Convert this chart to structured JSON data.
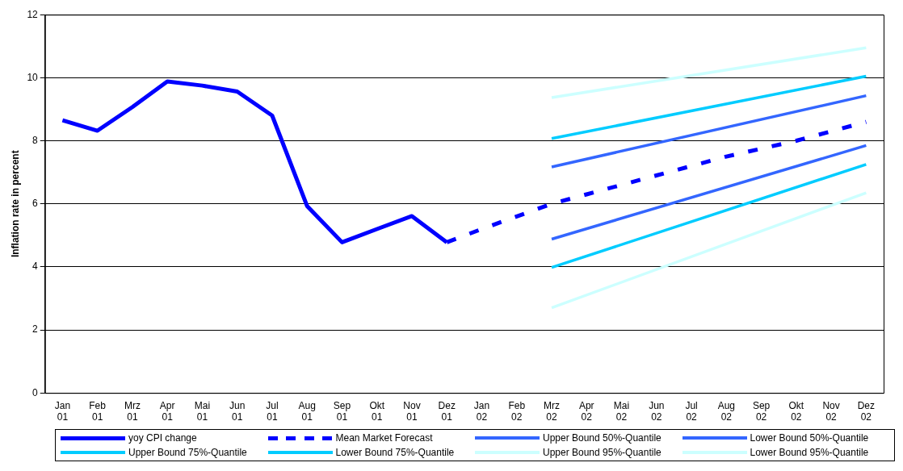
{
  "chart_data": {
    "type": "line",
    "ylabel": "Inflation rate in percent",
    "categories": [
      "Jan 01",
      "Feb 01",
      "Mrz 01",
      "Apr 01",
      "Mai 01",
      "Jun 01",
      "Jul 01",
      "Aug 01",
      "Sep 01",
      "Okt 01",
      "Nov 01",
      "Dez 01",
      "Jan 02",
      "Feb 02",
      "Mrz 02",
      "Apr 02",
      "Mai 02",
      "Jun 02",
      "Jul 02",
      "Aug 02",
      "Sep 02",
      "Okt 02",
      "Nov 02",
      "Dez 02"
    ],
    "series": [
      {
        "name": "yoy CPI change",
        "color": "#0000ff",
        "line_style": "solid",
        "values": [
          8.65,
          8.32,
          9.07,
          9.88,
          9.75,
          9.56,
          8.8,
          5.93,
          4.78,
          5.2,
          5.61,
          4.78,
          null,
          null,
          null,
          null,
          null,
          null,
          null,
          null,
          null,
          null,
          null,
          null
        ]
      },
      {
        "name": "Mean Market Forecast",
        "color": "#0000ff",
        "line_style": "dashed",
        "values": [
          null,
          null,
          null,
          null,
          null,
          null,
          null,
          null,
          null,
          null,
          null,
          4.78,
          5.2,
          5.6,
          6.0,
          6.3,
          6.6,
          6.9,
          7.2,
          7.5,
          7.75,
          8.0,
          8.3,
          8.6
        ]
      },
      {
        "name": "Upper Bound 50%-Quantile",
        "color": "#3366ff",
        "line_style": "solid",
        "values": [
          null,
          null,
          null,
          null,
          null,
          null,
          null,
          null,
          null,
          null,
          null,
          null,
          null,
          null,
          7.17,
          null,
          null,
          null,
          null,
          null,
          null,
          null,
          null,
          9.43
        ]
      },
      {
        "name": "Lower Bound 50%-Quantile",
        "color": "#3366ff",
        "line_style": "solid",
        "values": [
          null,
          null,
          null,
          null,
          null,
          null,
          null,
          null,
          null,
          null,
          null,
          null,
          null,
          null,
          4.88,
          null,
          null,
          null,
          null,
          null,
          null,
          null,
          null,
          7.85
        ]
      },
      {
        "name": "Upper Bound 75%-Quantile",
        "color": "#00ccff",
        "line_style": "solid",
        "values": [
          null,
          null,
          null,
          null,
          null,
          null,
          null,
          null,
          null,
          null,
          null,
          null,
          null,
          null,
          8.07,
          null,
          null,
          null,
          null,
          null,
          null,
          null,
          null,
          10.05
        ]
      },
      {
        "name": "Lower Bound 75%-Quantile",
        "color": "#00ccff",
        "line_style": "solid",
        "values": [
          null,
          null,
          null,
          null,
          null,
          null,
          null,
          null,
          null,
          null,
          null,
          null,
          null,
          null,
          3.98,
          null,
          null,
          null,
          null,
          null,
          null,
          null,
          null,
          7.25
        ]
      },
      {
        "name": "Upper Bound 95%-Quantile",
        "color": "#ccffff",
        "line_style": "solid",
        "values": [
          null,
          null,
          null,
          null,
          null,
          null,
          null,
          null,
          null,
          null,
          null,
          null,
          null,
          null,
          9.37,
          null,
          null,
          null,
          null,
          null,
          null,
          null,
          null,
          10.95
        ]
      },
      {
        "name": "Lower Bound 95%-Quantile",
        "color": "#ccffff",
        "line_style": "solid",
        "values": [
          null,
          null,
          null,
          null,
          null,
          null,
          null,
          null,
          null,
          null,
          null,
          null,
          null,
          null,
          2.7,
          null,
          null,
          null,
          null,
          null,
          null,
          null,
          null,
          6.35
        ]
      }
    ],
    "ylim": [
      0,
      12
    ],
    "yticks": [
      0,
      2,
      4,
      6,
      8,
      10,
      12
    ],
    "grid": "y",
    "legend": "bottom",
    "marker": "none"
  }
}
